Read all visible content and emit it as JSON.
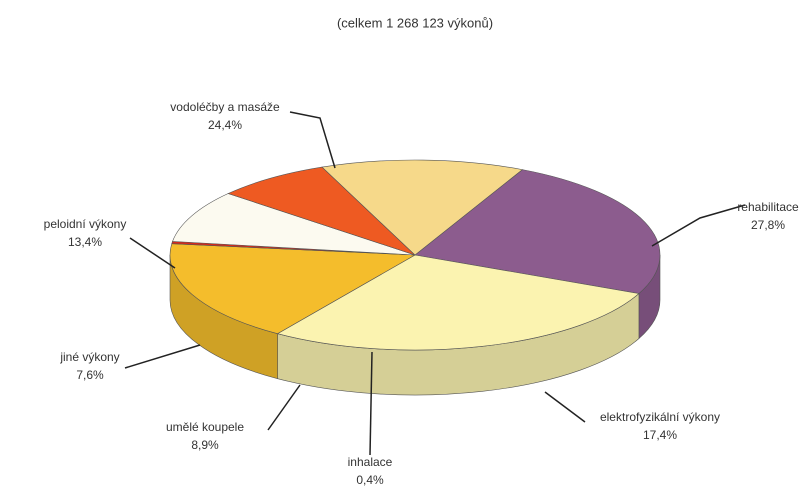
{
  "chart_data": {
    "type": "pie",
    "title": "(celkem 1 268 123 výkonů)",
    "categories": [
      "vodoléčby a masáže",
      "rehabilitace",
      "elektrofyzikální výkony",
      "inhalace",
      "umělé koupele",
      "jiné výkony",
      "peloidní výkony"
    ],
    "values": [
      24.4,
      27.8,
      17.4,
      0.4,
      8.9,
      7.6,
      13.4
    ],
    "value_labels": [
      "24,4%",
      "27,8%",
      "17,4%",
      "0,4%",
      "8,9%",
      "7,6%",
      "13,4%"
    ],
    "colors": [
      "#8c5c8e",
      "#fbf3b0",
      "#f4bd2c",
      "#d42a1c",
      "#fcfaf0",
      "#ee5a22",
      "#f6d98a"
    ]
  }
}
